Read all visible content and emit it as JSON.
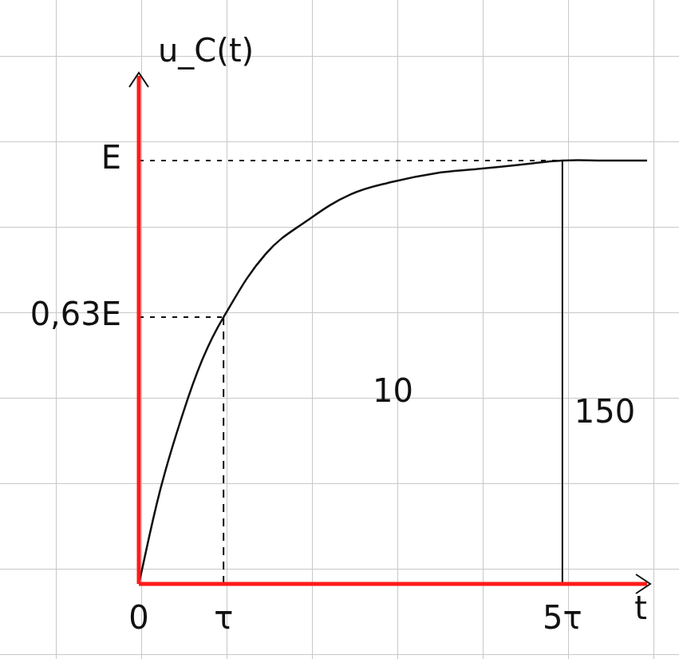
{
  "chart_data": {
    "type": "line",
    "x_label": "t",
    "y_label": "u_C(t)",
    "x": [
      0,
      0.25,
      0.5,
      0.75,
      1,
      1.5,
      2,
      2.5,
      3,
      3.5,
      4,
      4.5,
      5,
      5.5,
      6
    ],
    "values": [
      0,
      0.22,
      0.39,
      0.53,
      0.63,
      0.78,
      0.86,
      0.92,
      0.95,
      0.97,
      0.98,
      0.99,
      1,
      1,
      1
    ],
    "color": "#111111",
    "xlim": [
      0,
      6
    ],
    "xticks": [
      0,
      {
        "value": 1,
        "label": "τ"
      },
      {
        "value": 5,
        "label": "5τ"
      }
    ],
    "ylim": [
      0,
      1.2
    ],
    "yticks": [
      {
        "value": 0.63,
        "label": "0,63E"
      },
      {
        "value": 1,
        "label": "E"
      }
    ],
    "guides": [
      {
        "x": 1,
        "y": 0.63,
        "line_style": "dashed"
      },
      {
        "x": 5,
        "y": 1,
        "line_style": "solid"
      }
    ],
    "annotations": [
      {
        "text": "10",
        "x": 3,
        "y": 0.45
      },
      {
        "text": "150",
        "x": 5.5,
        "y": 0.4
      }
    ]
  }
}
